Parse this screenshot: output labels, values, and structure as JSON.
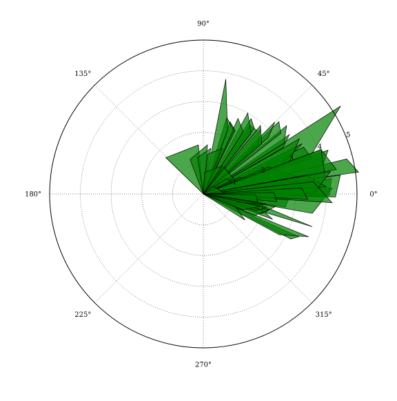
{
  "chart_data": {
    "type": "polar",
    "title": "",
    "rlim": [
      0,
      5
    ],
    "r_ticks": [
      {
        "value": 1,
        "label": "1"
      },
      {
        "value": 2,
        "label": "2"
      },
      {
        "value": 3,
        "label": "3"
      },
      {
        "value": 4,
        "label": "4"
      },
      {
        "value": 5,
        "label": "5"
      }
    ],
    "theta_ticks": [
      {
        "value": 0,
        "label": "0°"
      },
      {
        "value": 45,
        "label": "45°"
      },
      {
        "value": 90,
        "label": "90°"
      },
      {
        "value": 135,
        "label": "135°"
      },
      {
        "value": 180,
        "label": "180°"
      },
      {
        "value": 225,
        "label": "225°"
      },
      {
        "value": 270,
        "label": "270°"
      },
      {
        "value": 315,
        "label": "315°"
      }
    ],
    "grid": true,
    "fill_color": "#008000",
    "fill_opacity": 0.7,
    "edge_color": "#000000",
    "polygons": [
      [
        [
          0,
          0
        ],
        [
          32.6,
          5.3
        ],
        [
          18.1,
          3.6
        ],
        [
          0,
          0
        ]
      ],
      [
        [
          0,
          0
        ],
        [
          -16.7,
          3.7
        ],
        [
          -6.6,
          1.4
        ],
        [
          0,
          0
        ]
      ],
      [
        [
          0,
          0
        ],
        [
          -24.1,
          3.4
        ],
        [
          -27.2,
          3.2
        ],
        [
          0,
          0
        ]
      ],
      [
        [
          0,
          0
        ],
        [
          -22.1,
          3.7
        ],
        [
          -28.2,
          2.8
        ],
        [
          0,
          0
        ]
      ],
      [
        [
          0,
          0
        ],
        [
          -10.0,
          1.7
        ],
        [
          -20.1,
          2.4
        ],
        [
          0,
          0
        ]
      ],
      [
        [
          0,
          0
        ],
        [
          -9.6,
          2.4
        ],
        [
          -18.7,
          2.0
        ],
        [
          0,
          0
        ]
      ],
      [
        [
          0,
          0
        ],
        [
          -13.4,
          2.2
        ],
        [
          -22.9,
          1.8
        ],
        [
          0,
          0
        ]
      ],
      [
        [
          0,
          0
        ],
        [
          -20.9,
          1.1
        ],
        [
          -32.0,
          1.6
        ],
        [
          0,
          0
        ]
      ],
      [
        [
          0,
          0
        ],
        [
          -11.8,
          2.1
        ],
        [
          -17.5,
          1.8
        ],
        [
          0,
          0
        ]
      ],
      [
        [
          0,
          0
        ],
        [
          -7.0,
          0.9
        ],
        [
          -11.3,
          1.9
        ],
        [
          0,
          0
        ]
      ],
      [
        [
          0,
          0
        ],
        [
          -4.6,
          1.9
        ],
        [
          -15.2,
          2.0
        ],
        [
          0,
          0
        ]
      ],
      [
        [
          0,
          0
        ],
        [
          -2.4,
          2.8
        ],
        [
          -9.1,
          2.7
        ],
        [
          0,
          0
        ]
      ],
      [
        [
          0,
          0
        ],
        [
          2.6,
          4.2
        ],
        [
          -10.1,
          3.6
        ],
        [
          0,
          0
        ]
      ],
      [
        [
          0,
          0
        ],
        [
          6.9,
          4.2
        ],
        [
          -0.7,
          4.1
        ],
        [
          0,
          0
        ]
      ],
      [
        [
          0,
          0
        ],
        [
          7.8,
          4.5
        ],
        [
          -1.3,
          4.3
        ],
        [
          0,
          0
        ]
      ],
      [
        [
          0,
          0
        ],
        [
          13.7,
          4.8
        ],
        [
          8.0,
          5.1
        ],
        [
          0,
          0
        ]
      ],
      [
        [
          0,
          0
        ],
        [
          19.3,
          4.3
        ],
        [
          13.4,
          4.0
        ],
        [
          0,
          0
        ]
      ],
      [
        [
          0,
          0
        ],
        [
          25.0,
          3.6
        ],
        [
          18.2,
          3.7
        ],
        [
          0,
          0
        ]
      ],
      [
        [
          0,
          0
        ],
        [
          26.9,
          3.6
        ],
        [
          18.5,
          2.5
        ],
        [
          0,
          0
        ]
      ],
      [
        [
          0,
          0
        ],
        [
          29.8,
          3.6
        ],
        [
          20.5,
          3.0
        ],
        [
          0,
          0
        ]
      ],
      [
        [
          0,
          0
        ],
        [
          34.6,
          3.4
        ],
        [
          30.1,
          3.0
        ],
        [
          0,
          0
        ]
      ],
      [
        [
          0,
          0
        ],
        [
          39.3,
          3.5
        ],
        [
          32.0,
          3.1
        ],
        [
          0,
          0
        ]
      ],
      [
        [
          0,
          0
        ],
        [
          43.7,
          3.4
        ],
        [
          38.0,
          3.2
        ],
        [
          0,
          0
        ]
      ],
      [
        [
          0,
          0
        ],
        [
          45.1,
          3.3
        ],
        [
          40.9,
          2.8
        ],
        [
          0,
          0
        ]
      ],
      [
        [
          0,
          0
        ],
        [
          48.6,
          2.8
        ],
        [
          42.2,
          2.4
        ],
        [
          0,
          0
        ]
      ],
      [
        [
          0,
          0
        ],
        [
          50.1,
          2.9
        ],
        [
          40.5,
          2.5
        ],
        [
          0,
          0
        ]
      ],
      [
        [
          0,
          0
        ],
        [
          55.6,
          2.7
        ],
        [
          49.8,
          2.7
        ],
        [
          0,
          0
        ]
      ],
      [
        [
          0,
          0
        ],
        [
          57.6,
          2.9
        ],
        [
          52.1,
          2.7
        ],
        [
          0,
          0
        ]
      ],
      [
        [
          0,
          0
        ],
        [
          61.2,
          3.0
        ],
        [
          51.6,
          2.5
        ],
        [
          0,
          0
        ]
      ],
      [
        [
          0,
          0
        ],
        [
          65.3,
          2.7
        ],
        [
          57.2,
          2.4
        ],
        [
          0,
          0
        ]
      ],
      [
        [
          0,
          0
        ],
        [
          69.6,
          2.5
        ],
        [
          63.2,
          2.3
        ],
        [
          0,
          0
        ]
      ],
      [
        [
          0,
          0
        ],
        [
          73.0,
          2.6
        ],
        [
          64.5,
          2.3
        ],
        [
          0,
          0
        ]
      ],
      [
        [
          0,
          0
        ],
        [
          78.9,
          3.8
        ],
        [
          69.0,
          2.2
        ],
        [
          0,
          0
        ]
      ],
      [
        [
          0,
          0
        ],
        [
          95.8,
          1.6
        ],
        [
          136.0,
          1.7
        ],
        [
          0,
          0
        ]
      ],
      [
        [
          0,
          0
        ],
        [
          85.2,
          1.6
        ],
        [
          111.0,
          1.2
        ],
        [
          0,
          0
        ]
      ],
      [
        [
          0,
          0
        ],
        [
          80.7,
          1.5
        ],
        [
          98.9,
          1.2
        ],
        [
          0,
          0
        ]
      ],
      [
        [
          0,
          0
        ],
        [
          67.3,
          1.6
        ],
        [
          84.0,
          1.3
        ],
        [
          0,
          0
        ]
      ],
      [
        [
          0,
          0
        ],
        [
          55.5,
          1.1
        ],
        [
          86.6,
          0.7
        ],
        [
          0,
          0
        ]
      ],
      [
        [
          0,
          0
        ],
        [
          27.4,
          1.1
        ],
        [
          52.2,
          1.1
        ],
        [
          0,
          0
        ]
      ],
      [
        [
          0,
          0
        ],
        [
          14.3,
          1.1
        ],
        [
          33.7,
          0.9
        ],
        [
          0,
          0
        ]
      ],
      [
        [
          0,
          0
        ],
        [
          5.8,
          1.9
        ],
        [
          24.7,
          1.3
        ],
        [
          0,
          0
        ]
      ],
      [
        [
          0,
          0
        ],
        [
          6.8,
          3.5
        ],
        [
          22.4,
          2.3
        ],
        [
          0,
          0
        ]
      ],
      [
        [
          0,
          0
        ],
        [
          10.4,
          4.4
        ],
        [
          20.4,
          4.1
        ],
        [
          0,
          0
        ]
      ],
      [
        [
          0,
          0
        ],
        [
          2.9,
          3.8
        ],
        [
          7.7,
          3.0
        ],
        [
          0,
          0
        ]
      ],
      [
        [
          0,
          0
        ],
        [
          7.7,
          4.0
        ],
        [
          20.7,
          4.1
        ],
        [
          0,
          0
        ]
      ],
      [
        [
          0,
          0
        ],
        [
          3.3,
          4.0
        ],
        [
          10.4,
          3.4
        ],
        [
          0,
          0
        ]
      ],
      [
        [
          0,
          0
        ],
        [
          0.3,
          3.6
        ],
        [
          10.0,
          4.2
        ],
        [
          0,
          0
        ]
      ],
      [
        [
          0,
          0
        ],
        [
          -3.9,
          4.2
        ],
        [
          6.3,
          3.6
        ],
        [
          0,
          0
        ]
      ],
      [
        [
          0,
          0
        ],
        [
          -2.9,
          3.4
        ],
        [
          3.5,
          3.2
        ],
        [
          0,
          0
        ]
      ],
      [
        [
          0,
          0
        ],
        [
          -6.1,
          2.4
        ],
        [
          1.2,
          2.3
        ],
        [
          0,
          0
        ]
      ],
      [
        [
          0,
          0
        ],
        [
          -8.5,
          1.8
        ],
        [
          -1.1,
          1.7
        ],
        [
          0,
          0
        ]
      ],
      [
        [
          0,
          0
        ],
        [
          -9.1,
          2.1
        ],
        [
          -15.7,
          1.0
        ],
        [
          0,
          0
        ]
      ],
      [
        [
          0,
          0
        ],
        [
          -12.2,
          1.9
        ],
        [
          -21.4,
          1.4
        ],
        [
          0,
          0
        ]
      ],
      [
        [
          0,
          0
        ],
        [
          38.2,
          0.4
        ],
        [
          2.0,
          0.7
        ],
        [
          0,
          0
        ]
      ]
    ]
  }
}
